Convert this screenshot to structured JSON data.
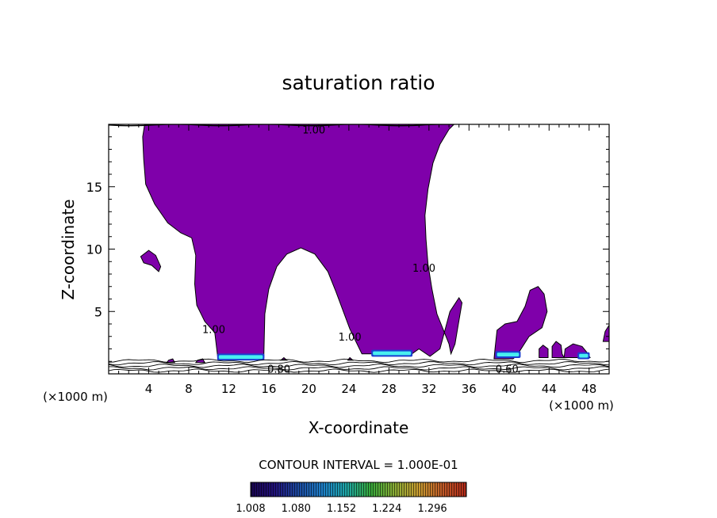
{
  "chart_data": {
    "type": "contour",
    "title": "saturation ratio",
    "xlabel": "X-coordinate",
    "ylabel": "Z-coordinate",
    "x_unit_label_left": "(×1000 m)",
    "x_unit_label_right": "(×1000 m)",
    "xlim": [
      0,
      50
    ],
    "ylim": [
      0,
      20
    ],
    "x_ticks": [
      {
        "value": 4,
        "label": "4"
      },
      {
        "value": 8,
        "label": "8"
      },
      {
        "value": 12,
        "label": "12"
      },
      {
        "value": 16,
        "label": "16"
      },
      {
        "value": 20,
        "label": "20"
      },
      {
        "value": 24,
        "label": "24"
      },
      {
        "value": 28,
        "label": "28"
      },
      {
        "value": 32,
        "label": "32"
      },
      {
        "value": 36,
        "label": "36"
      },
      {
        "value": 40,
        "label": "40"
      },
      {
        "value": 44,
        "label": "44"
      },
      {
        "value": 48,
        "label": "48"
      }
    ],
    "y_ticks": [
      {
        "value": 5,
        "label": "5"
      },
      {
        "value": 10,
        "label": "10"
      },
      {
        "value": 15,
        "label": "15"
      }
    ],
    "contour_interval_text": "CONTOUR INTERVAL = 1.000E-01",
    "contour_labels": [
      {
        "text": "1.00",
        "x": 20.5,
        "y": 19.6
      },
      {
        "text": "1.00",
        "x": 31.5,
        "y": 8.5
      },
      {
        "text": "1.00",
        "x": 10.5,
        "y": 3.6
      },
      {
        "text": "1.00",
        "x": 24.1,
        "y": 3.0
      },
      {
        "text": "0.80",
        "x": 17.0,
        "y": 0.4
      },
      {
        "text": "0.60",
        "x": 39.8,
        "y": 0.4
      }
    ],
    "colorbar": {
      "min": 1.008,
      "max": 1.35,
      "colors": [
        "#1a0550",
        "#22127a",
        "#1c4aa0",
        "#1e7fc8",
        "#1ea6a6",
        "#36a83a",
        "#8aac36",
        "#c89c30",
        "#c05a28",
        "#b02818"
      ],
      "tick_labels": [
        "1.008",
        "1.080",
        "1.152",
        "1.224",
        "1.296"
      ]
    },
    "fill_color": "#7f00aa",
    "highlight_color": "#48f0f0",
    "supersaturated_regions": [
      {
        "name": "main plume",
        "polygon": [
          [
            0,
            20
          ],
          [
            3.6,
            20
          ],
          [
            3.4,
            19
          ],
          [
            3.5,
            17.2
          ],
          [
            3.7,
            15.2
          ],
          [
            4.6,
            13.6
          ],
          [
            5.9,
            12.1
          ],
          [
            7.2,
            11.3
          ],
          [
            8.3,
            10.9
          ],
          [
            8.7,
            9.5
          ],
          [
            8.6,
            7.2
          ],
          [
            8.8,
            5.5
          ],
          [
            9.6,
            4.2
          ],
          [
            10.6,
            3.3
          ],
          [
            10.9,
            1.3
          ],
          [
            15.5,
            1.3
          ],
          [
            15.6,
            4.8
          ],
          [
            16.0,
            6.8
          ],
          [
            16.8,
            8.6
          ],
          [
            17.8,
            9.6
          ],
          [
            19.2,
            10.1
          ],
          [
            20.6,
            9.6
          ],
          [
            21.9,
            8.2
          ],
          [
            22.7,
            6.6
          ],
          [
            23.4,
            5.1
          ],
          [
            24.1,
            3.6
          ],
          [
            24.7,
            2.6
          ],
          [
            25.3,
            1.6
          ],
          [
            30.3,
            1.6
          ],
          [
            31.0,
            2.0
          ],
          [
            32.1,
            1.4
          ],
          [
            33.1,
            2.0
          ],
          [
            33.4,
            2.9
          ],
          [
            34.1,
            5.0
          ],
          [
            35.0,
            6.1
          ],
          [
            35.3,
            5.7
          ],
          [
            34.9,
            3.8
          ],
          [
            34.6,
            2.4
          ],
          [
            34.2,
            1.6
          ],
          [
            34.0,
            2.4
          ],
          [
            32.8,
            4.8
          ],
          [
            32.3,
            6.8
          ],
          [
            31.9,
            8.8
          ],
          [
            31.7,
            10.8
          ],
          [
            31.6,
            12.7
          ],
          [
            31.9,
            14.8
          ],
          [
            32.4,
            16.9
          ],
          [
            33.1,
            18.4
          ],
          [
            34.0,
            19.6
          ],
          [
            34.5,
            20.0
          ]
        ]
      },
      {
        "name": "left blob",
        "polygon": [
          [
            3.2,
            9.4
          ],
          [
            4.0,
            9.9
          ],
          [
            4.7,
            9.5
          ],
          [
            5.2,
            8.6
          ],
          [
            5.0,
            8.2
          ],
          [
            4.3,
            8.7
          ],
          [
            3.5,
            8.9
          ]
        ]
      },
      {
        "name": "right cell",
        "polygon": [
          [
            38.5,
            1.2
          ],
          [
            38.6,
            2.0
          ],
          [
            38.8,
            3.5
          ],
          [
            39.6,
            4.0
          ],
          [
            40.8,
            4.2
          ],
          [
            41.6,
            5.4
          ],
          [
            42.1,
            6.7
          ],
          [
            42.9,
            7.0
          ],
          [
            43.5,
            6.4
          ],
          [
            43.8,
            5.0
          ],
          [
            43.3,
            3.7
          ],
          [
            42.0,
            3.0
          ],
          [
            40.8,
            1.5
          ],
          [
            40.4,
            1.2
          ]
        ]
      },
      {
        "name": "small cell A",
        "polygon": [
          [
            43.0,
            1.3
          ],
          [
            43.0,
            2.0
          ],
          [
            43.4,
            2.3
          ],
          [
            43.9,
            2.0
          ],
          [
            43.9,
            1.3
          ]
        ]
      },
      {
        "name": "small cell B",
        "polygon": [
          [
            44.3,
            1.3
          ],
          [
            44.3,
            2.2
          ],
          [
            44.7,
            2.6
          ],
          [
            45.2,
            2.3
          ],
          [
            45.3,
            1.6
          ],
          [
            45.5,
            1.3
          ]
        ]
      },
      {
        "name": "small cell C",
        "polygon": [
          [
            45.5,
            1.3
          ],
          [
            45.6,
            2.0
          ],
          [
            46.4,
            2.4
          ],
          [
            47.3,
            2.2
          ],
          [
            47.8,
            1.7
          ],
          [
            48.1,
            1.3
          ]
        ]
      },
      {
        "name": "edge cell",
        "polygon": [
          [
            49.4,
            2.6
          ],
          [
            49.6,
            3.4
          ],
          [
            50.0,
            3.9
          ],
          [
            50.0,
            2.6
          ]
        ]
      },
      {
        "name": "spot 1",
        "polygon": [
          [
            5.8,
            0.9
          ],
          [
            6.0,
            1.1
          ],
          [
            6.4,
            1.2
          ],
          [
            6.6,
            0.9
          ]
        ]
      },
      {
        "name": "spot 2",
        "polygon": [
          [
            8.7,
            0.9
          ],
          [
            8.9,
            1.1
          ],
          [
            9.4,
            1.2
          ],
          [
            9.6,
            0.9
          ]
        ]
      },
      {
        "name": "spot 3",
        "polygon": [
          [
            17.2,
            1.1
          ],
          [
            17.5,
            1.3
          ],
          [
            17.8,
            1.1
          ]
        ]
      },
      {
        "name": "spot 4",
        "polygon": [
          [
            23.9,
            1.1
          ],
          [
            24.1,
            1.3
          ],
          [
            24.4,
            1.1
          ]
        ]
      }
    ],
    "cyan_cores": [
      {
        "x0": 11.0,
        "x1": 15.4,
        "y0": 1.2,
        "y1": 1.5
      },
      {
        "x0": 26.4,
        "x1": 30.2,
        "y0": 1.5,
        "y1": 1.8
      },
      {
        "x0": 38.8,
        "x1": 41.0,
        "y0": 1.4,
        "y1": 1.7
      },
      {
        "x0": 47.0,
        "x1": 47.9,
        "y0": 1.3,
        "y1": 1.6
      }
    ],
    "boundary_contours": [
      0.6,
      0.7,
      0.8,
      0.9,
      1.0
    ]
  }
}
